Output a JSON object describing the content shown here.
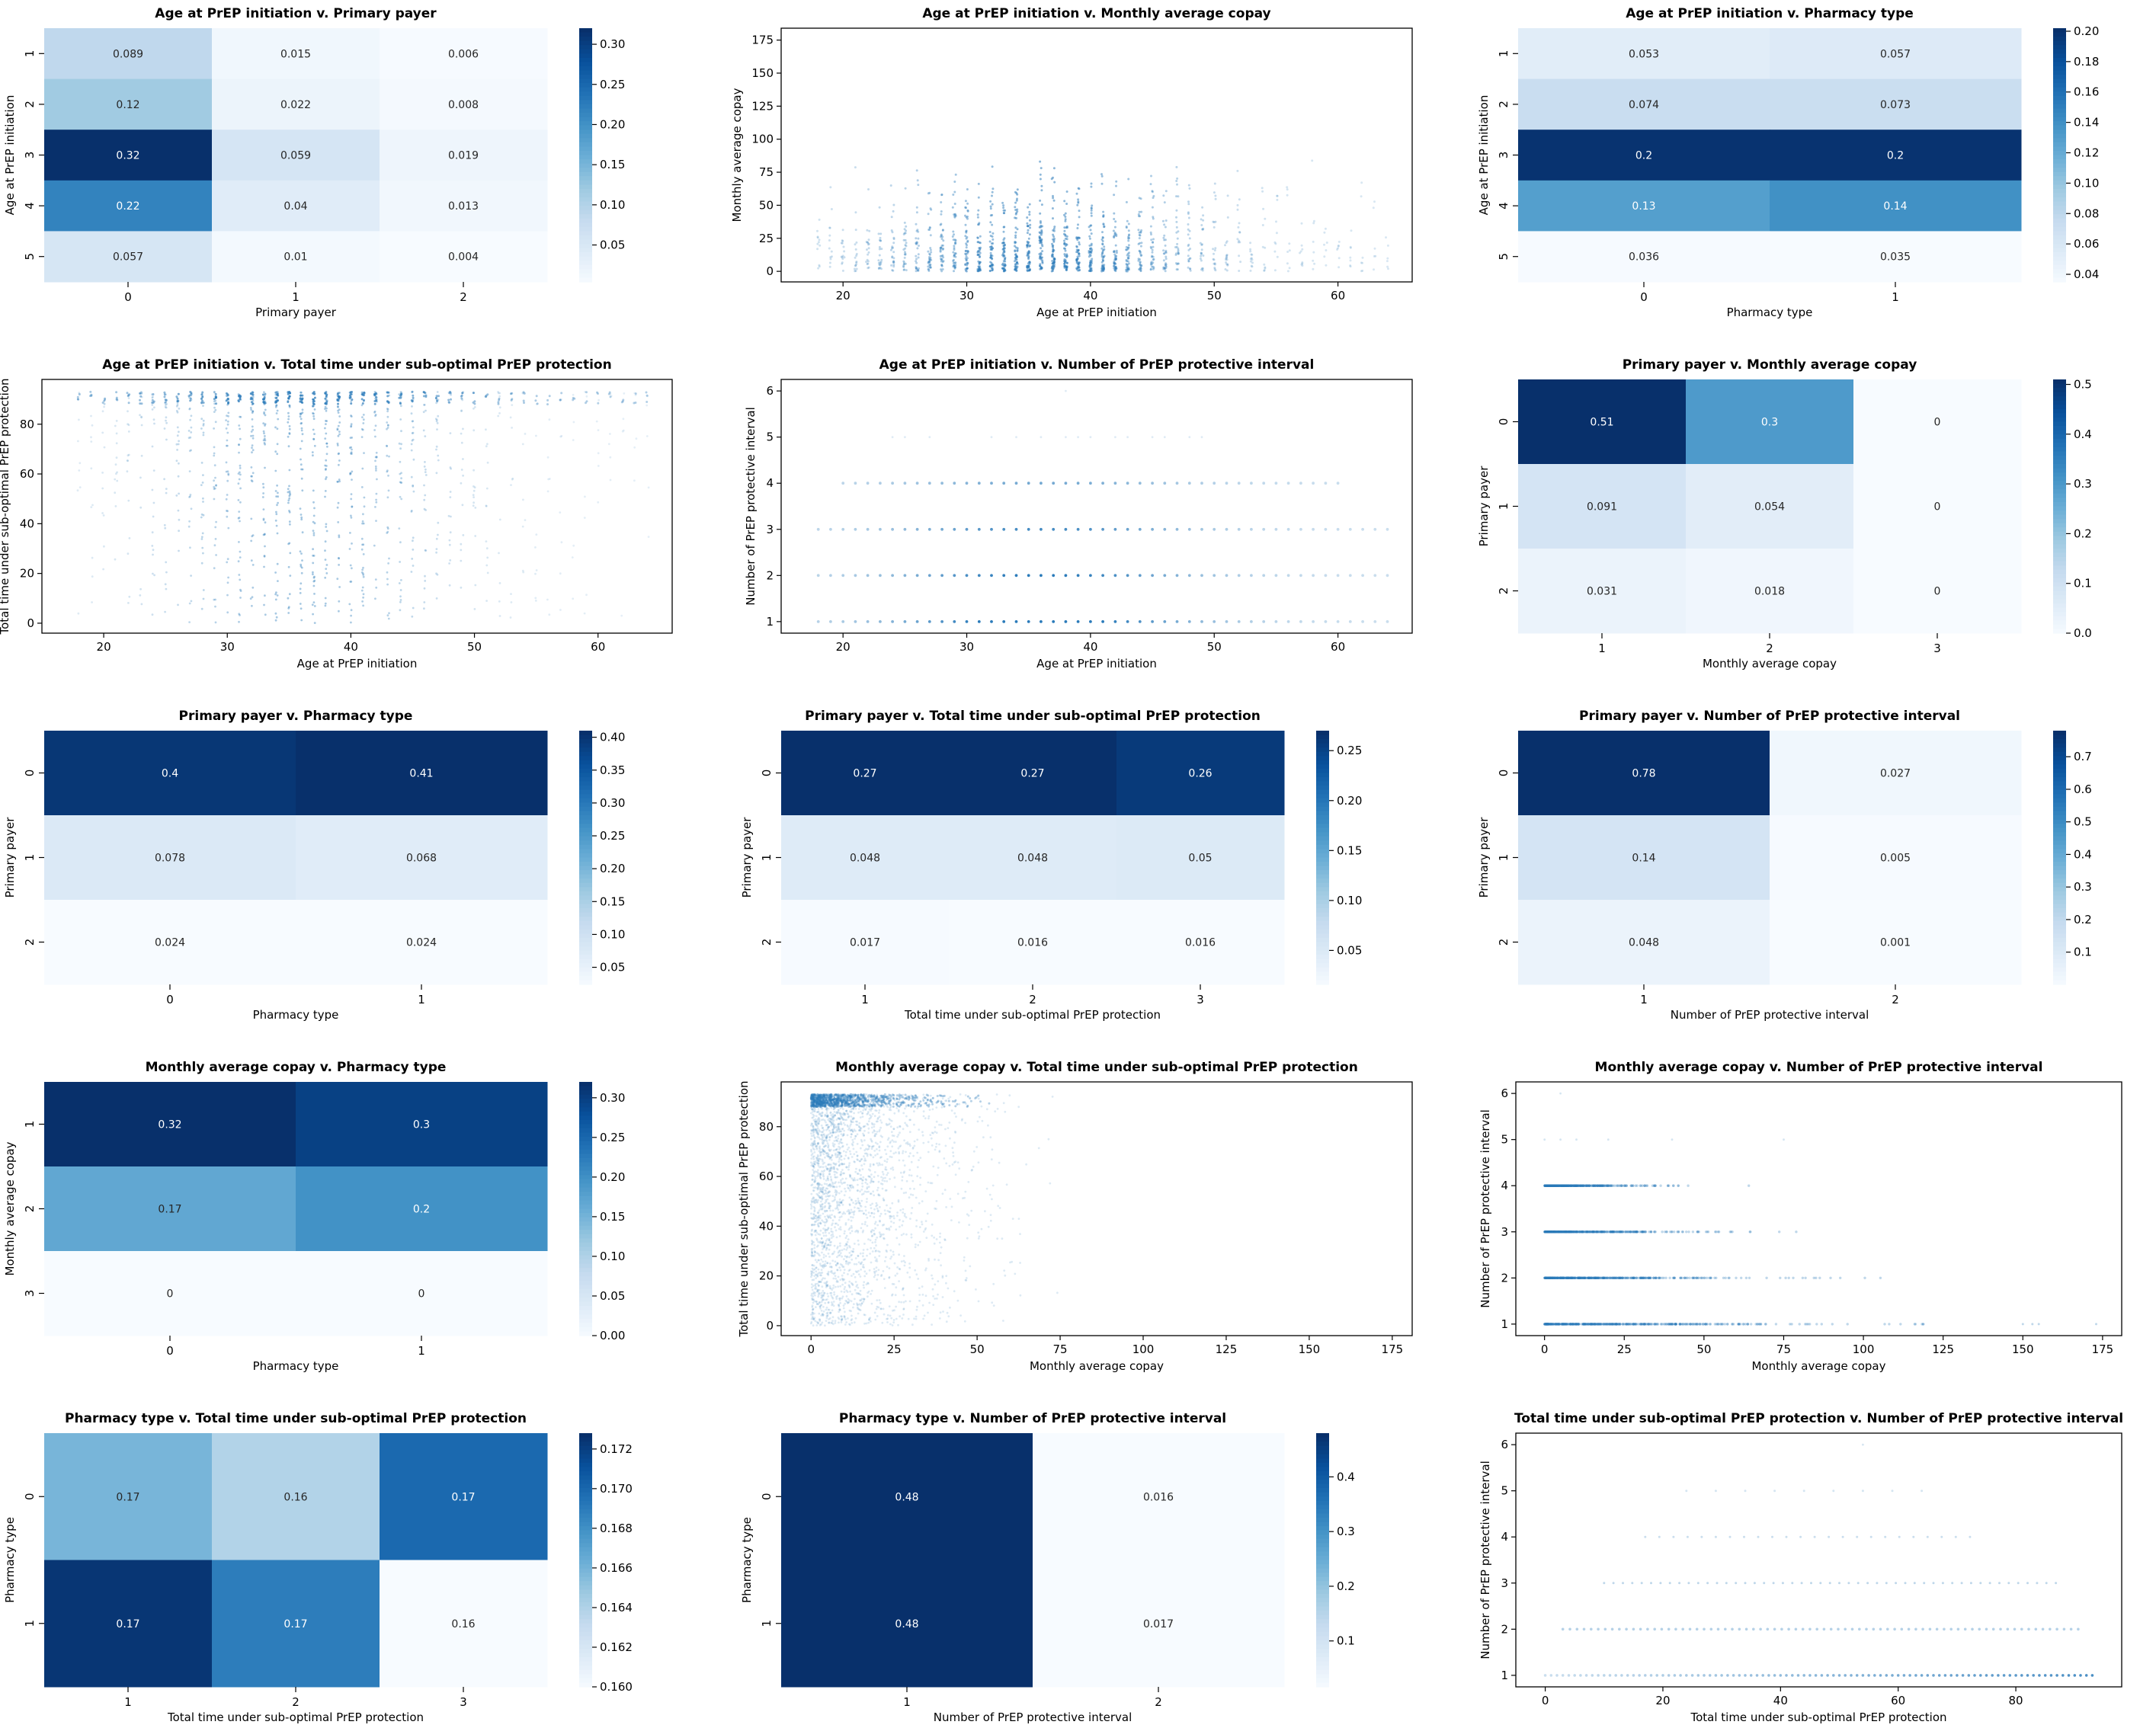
{
  "colors": {
    "light": "#f7fbff",
    "dark": "#08306b",
    "point": "#2b7bba",
    "axis": "#000000",
    "text_on_dark": "#ffffff",
    "text_on_light": "#262626"
  },
  "chart_data": [
    {
      "type": "heatmap",
      "title": "Age at PrEP initiation v. Primary payer",
      "xlabel": "Primary payer",
      "ylabel": "Age at PrEP initiation",
      "x_categories": [
        "0",
        "1",
        "2"
      ],
      "y_categories": [
        "1",
        "2",
        "3",
        "4",
        "5"
      ],
      "values": [
        [
          "0.089",
          "0.015",
          "0.006"
        ],
        [
          "0.12",
          "0.022",
          "0.008"
        ],
        [
          "0.32",
          "0.059",
          "0.019"
        ],
        [
          "0.22",
          "0.04",
          "0.013"
        ],
        [
          "0.057",
          "0.01",
          "0.004"
        ]
      ],
      "colorbar_ticks": [
        "0.05",
        "0.10",
        "0.15",
        "0.20",
        "0.25",
        "0.30"
      ],
      "vmin": 0.004,
      "vmax": 0.32
    },
    {
      "type": "scatter",
      "title": "Age at PrEP initiation v. Monthly average copay",
      "xlabel": "Age at PrEP initiation",
      "ylabel": "Monthly average copay",
      "xlim": [
        15,
        66
      ],
      "ylim": [
        -8,
        184
      ],
      "xticks": [
        20,
        30,
        40,
        50,
        60
      ],
      "yticks": [
        0,
        25,
        50,
        75,
        100,
        125,
        150,
        175
      ],
      "x_range": [
        18,
        64
      ],
      "y_range": [
        0,
        173
      ],
      "pattern": "age_copay"
    },
    {
      "type": "heatmap",
      "title": "Age at PrEP initiation v. Pharmacy type",
      "xlabel": "Pharmacy type",
      "ylabel": "Age at PrEP initiation",
      "x_categories": [
        "0",
        "1"
      ],
      "y_categories": [
        "1",
        "2",
        "3",
        "4",
        "5"
      ],
      "values": [
        [
          "0.053",
          "0.057"
        ],
        [
          "0.074",
          "0.073"
        ],
        [
          "0.2",
          "0.2"
        ],
        [
          "0.13",
          "0.14"
        ],
        [
          "0.036",
          "0.035"
        ]
      ],
      "colorbar_ticks": [
        "0.04",
        "0.06",
        "0.08",
        "0.10",
        "0.12",
        "0.14",
        "0.16",
        "0.18",
        "0.20"
      ],
      "vmin": 0.035,
      "vmax": 0.202
    },
    {
      "type": "scatter",
      "title": "Age at PrEP initiation v. Total time under sub-optimal PrEP protection",
      "xlabel": "Age at PrEP initiation",
      "ylabel": "Total time under sub-optimal PrEP protection",
      "xlim": [
        15,
        66
      ],
      "ylim": [
        -4,
        98
      ],
      "xticks": [
        20,
        30,
        40,
        50,
        60
      ],
      "yticks": [
        0,
        20,
        40,
        60,
        80
      ],
      "x_range": [
        18,
        64
      ],
      "y_range": [
        0,
        93
      ],
      "pattern": "age_time"
    },
    {
      "type": "scatter",
      "title": "Age at PrEP initiation v. Number of PrEP protective interval",
      "xlabel": "Age at PrEP initiation",
      "ylabel": "Number of PrEP protective interval",
      "xlim": [
        15,
        66
      ],
      "ylim": [
        0.75,
        6.25
      ],
      "xticks": [
        20,
        30,
        40,
        50,
        60
      ],
      "yticks": [
        1,
        2,
        3,
        4,
        5,
        6
      ],
      "x_range": [
        18,
        64
      ],
      "y_range": [
        1,
        6
      ],
      "pattern": "age_count"
    },
    {
      "type": "heatmap",
      "title": "Primary payer v. Monthly average copay",
      "xlabel": "Monthly average copay",
      "ylabel": "Primary payer",
      "x_categories": [
        "1",
        "2",
        "3"
      ],
      "y_categories": [
        "0",
        "1",
        "2"
      ],
      "values": [
        [
          "0.51",
          "0.3",
          "0"
        ],
        [
          "0.091",
          "0.054",
          "0"
        ],
        [
          "0.031",
          "0.018",
          "0"
        ]
      ],
      "colorbar_ticks": [
        "0.0",
        "0.1",
        "0.2",
        "0.3",
        "0.4",
        "0.5"
      ],
      "vmin": 0,
      "vmax": 0.51
    },
    {
      "type": "heatmap",
      "title": "Primary payer v. Pharmacy type",
      "xlabel": "Pharmacy type",
      "ylabel": "Primary payer",
      "x_categories": [
        "0",
        "1"
      ],
      "y_categories": [
        "0",
        "1",
        "2"
      ],
      "values": [
        [
          "0.4",
          "0.41"
        ],
        [
          "0.078",
          "0.068"
        ],
        [
          "0.024",
          "0.024"
        ]
      ],
      "colorbar_ticks": [
        "0.05",
        "0.10",
        "0.15",
        "0.20",
        "0.25",
        "0.30",
        "0.35",
        "0.40"
      ],
      "vmin": 0.024,
      "vmax": 0.41
    },
    {
      "type": "heatmap",
      "title": "Primary payer v. Total time under sub-optimal PrEP protection",
      "xlabel": "Total time under sub-optimal PrEP protection",
      "ylabel": "Primary payer",
      "x_categories": [
        "1",
        "2",
        "3"
      ],
      "y_categories": [
        "0",
        "1",
        "2"
      ],
      "values": [
        [
          "0.27",
          "0.27",
          "0.26"
        ],
        [
          "0.048",
          "0.048",
          "0.05"
        ],
        [
          "0.017",
          "0.016",
          "0.016"
        ]
      ],
      "colorbar_ticks": [
        "0.05",
        "0.10",
        "0.15",
        "0.20",
        "0.25"
      ],
      "vmin": 0.016,
      "vmax": 0.27
    },
    {
      "type": "heatmap",
      "title": "Primary payer v. Number of PrEP protective interval",
      "xlabel": "Number of PrEP protective interval",
      "ylabel": "Primary payer",
      "x_categories": [
        "1",
        "2"
      ],
      "y_categories": [
        "0",
        "1",
        "2"
      ],
      "values": [
        [
          "0.78",
          "0.027"
        ],
        [
          "0.14",
          "0.005"
        ],
        [
          "0.048",
          "0.001"
        ]
      ],
      "colorbar_ticks": [
        "0.1",
        "0.2",
        "0.3",
        "0.4",
        "0.5",
        "0.6",
        "0.7"
      ],
      "vmin": 0.001,
      "vmax": 0.78
    },
    {
      "type": "heatmap",
      "title": "Monthly average copay v. Pharmacy type",
      "xlabel": "Pharmacy type",
      "ylabel": "Monthly average copay",
      "x_categories": [
        "0",
        "1"
      ],
      "y_categories": [
        "1",
        "2",
        "3"
      ],
      "values": [
        [
          "0.32",
          "0.3"
        ],
        [
          "0.17",
          "0.2"
        ],
        [
          "0",
          "0"
        ]
      ],
      "colorbar_ticks": [
        "0.00",
        "0.05",
        "0.10",
        "0.15",
        "0.20",
        "0.25",
        "0.30"
      ],
      "vmin": 0,
      "vmax": 0.32
    },
    {
      "type": "scatter",
      "title": "Monthly average copay v. Total time under sub-optimal PrEP protection",
      "xlabel": "Monthly average copay",
      "ylabel": "Total time under sub-optimal PrEP protection",
      "xlim": [
        -9,
        181
      ],
      "ylim": [
        -4,
        98
      ],
      "xticks": [
        0,
        25,
        50,
        75,
        100,
        125,
        150,
        175
      ],
      "yticks": [
        0,
        20,
        40,
        60,
        80
      ],
      "x_range": [
        0,
        173
      ],
      "y_range": [
        0,
        93
      ],
      "pattern": "copay_time"
    },
    {
      "type": "scatter",
      "title": "Monthly average copay v. Number of PrEP protective interval",
      "xlabel": "Monthly average copay",
      "ylabel": "Number of PrEP protective interval",
      "xlim": [
        -9,
        181
      ],
      "ylim": [
        0.75,
        6.25
      ],
      "xticks": [
        0,
        25,
        50,
        75,
        100,
        125,
        150,
        175
      ],
      "yticks": [
        1,
        2,
        3,
        4,
        5,
        6
      ],
      "x_range": [
        0,
        173
      ],
      "y_range": [
        1,
        6
      ],
      "pattern": "copay_count"
    },
    {
      "type": "heatmap",
      "title": "Pharmacy type v. Total time under sub-optimal PrEP protection",
      "xlabel": "Total time under sub-optimal PrEP protection",
      "ylabel": "Pharmacy type",
      "x_categories": [
        "1",
        "2",
        "3"
      ],
      "y_categories": [
        "0",
        "1"
      ],
      "values": [
        [
          "0.17",
          "0.16",
          "0.17"
        ],
        [
          "0.17",
          "0.17",
          "0.16"
        ]
      ],
      "cell_shades": [
        [
          0.166,
          0.164,
          0.17
        ],
        [
          0.1725,
          0.169,
          0.16
        ]
      ],
      "colorbar_ticks": [
        "0.160",
        "0.162",
        "0.164",
        "0.166",
        "0.168",
        "0.170",
        "0.172"
      ],
      "vmin": 0.16,
      "vmax": 0.1728
    },
    {
      "type": "heatmap",
      "title": "Pharmacy type v. Number of PrEP protective interval",
      "xlabel": "Number of PrEP protective interval",
      "ylabel": "Pharmacy type",
      "x_categories": [
        "1",
        "2"
      ],
      "y_categories": [
        "0",
        "1"
      ],
      "values": [
        [
          "0.48",
          "0.016"
        ],
        [
          "0.48",
          "0.017"
        ]
      ],
      "colorbar_ticks": [
        "0.1",
        "0.2",
        "0.3",
        "0.4"
      ],
      "vmin": 0.016,
      "vmax": 0.48
    },
    {
      "type": "scatter",
      "title": "Total time under sub-optimal PrEP protection v. Number of PrEP protective interval",
      "xlabel": "Total time under sub-optimal PrEP protection",
      "ylabel": "Number of PrEP protective interval",
      "xlim": [
        -5,
        98
      ],
      "ylim": [
        0.75,
        6.25
      ],
      "xticks": [
        0,
        20,
        40,
        60,
        80
      ],
      "yticks": [
        1,
        2,
        3,
        4,
        5,
        6
      ],
      "x_range": [
        0,
        93
      ],
      "y_range": [
        1,
        6
      ],
      "pattern": "time_count"
    }
  ]
}
